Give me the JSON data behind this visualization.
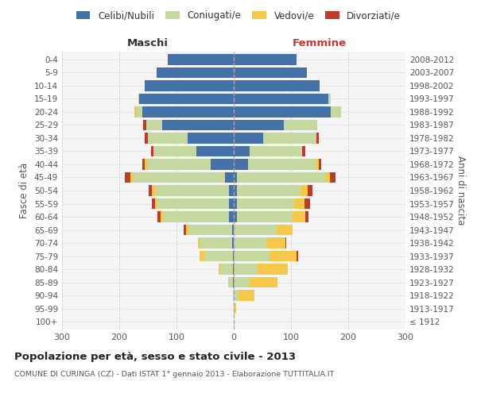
{
  "age_groups": [
    "100+",
    "95-99",
    "90-94",
    "85-89",
    "80-84",
    "75-79",
    "70-74",
    "65-69",
    "60-64",
    "55-59",
    "50-54",
    "45-49",
    "40-44",
    "35-39",
    "30-34",
    "25-29",
    "20-24",
    "15-19",
    "10-14",
    "5-9",
    "0-4"
  ],
  "birth_years": [
    "≤ 1912",
    "1913-1917",
    "1918-1922",
    "1923-1927",
    "1928-1932",
    "1933-1937",
    "1938-1942",
    "1943-1947",
    "1948-1952",
    "1953-1957",
    "1958-1962",
    "1963-1967",
    "1968-1972",
    "1973-1977",
    "1978-1982",
    "1983-1987",
    "1988-1992",
    "1993-1997",
    "1998-2002",
    "2003-2007",
    "2008-2012"
  ],
  "maschi": {
    "celibi": [
      0,
      0,
      0,
      2,
      2,
      2,
      3,
      3,
      8,
      8,
      8,
      15,
      40,
      65,
      80,
      125,
      160,
      165,
      155,
      135,
      115
    ],
    "coniugati": [
      0,
      0,
      2,
      8,
      20,
      50,
      55,
      75,
      115,
      125,
      130,
      160,
      110,
      75,
      70,
      28,
      10,
      2,
      0,
      0,
      0
    ],
    "vedovi": [
      0,
      0,
      0,
      0,
      5,
      8,
      5,
      5,
      5,
      5,
      5,
      5,
      5,
      0,
      0,
      0,
      4,
      0,
      0,
      0,
      0
    ],
    "divorziati": [
      0,
      0,
      0,
      0,
      0,
      0,
      0,
      5,
      5,
      5,
      5,
      10,
      5,
      5,
      5,
      5,
      0,
      0,
      0,
      0,
      0
    ]
  },
  "femmine": {
    "nubili": [
      0,
      0,
      0,
      0,
      0,
      0,
      0,
      0,
      5,
      5,
      5,
      5,
      25,
      28,
      52,
      88,
      170,
      165,
      150,
      128,
      110
    ],
    "coniugate": [
      0,
      2,
      8,
      28,
      42,
      62,
      58,
      75,
      98,
      100,
      112,
      155,
      118,
      92,
      92,
      58,
      18,
      5,
      0,
      0,
      0
    ],
    "vedove": [
      0,
      2,
      28,
      48,
      52,
      48,
      32,
      28,
      22,
      18,
      12,
      8,
      5,
      0,
      0,
      0,
      0,
      0,
      0,
      0,
      0
    ],
    "divorziate": [
      0,
      0,
      0,
      0,
      0,
      2,
      2,
      0,
      5,
      10,
      8,
      10,
      5,
      5,
      5,
      0,
      0,
      0,
      0,
      0,
      0
    ]
  },
  "colors": {
    "celibi": "#4472a8",
    "coniugati": "#c5d8a0",
    "vedovi": "#f5c84a",
    "divorziati": "#c0392b"
  },
  "xlim": 300,
  "title": "Popolazione per età, sesso e stato civile - 2013",
  "subtitle": "COMUNE DI CURINGA (CZ) - Dati ISTAT 1° gennaio 2013 - Elaborazione TUTTITALIA.IT",
  "ylabel_left": "Fasce di età",
  "ylabel_right": "Anni di nascita",
  "xlabel_maschi": "Maschi",
  "xlabel_femmine": "Femmine",
  "bg_color": "#f5f5f5",
  "grid_color": "#cccccc",
  "legend_labels": [
    "Celibi/Nubili",
    "Coniugati/e",
    "Vedovi/e",
    "Divorziati/e"
  ]
}
